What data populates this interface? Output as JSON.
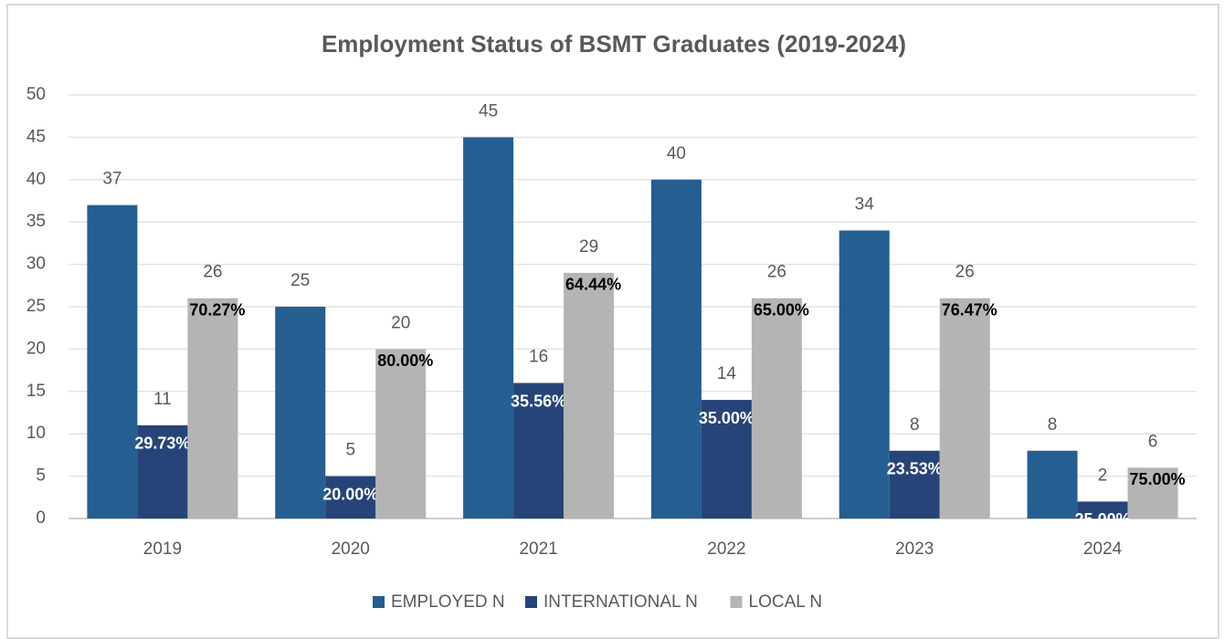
{
  "chart_data": {
    "type": "bar",
    "title": "Employment Status of BSMT Graduates (2019-2024)",
    "categories": [
      "2019",
      "2020",
      "2021",
      "2022",
      "2023",
      "2024"
    ],
    "series": [
      {
        "name": "EMPLOYED N",
        "color": "#255e91",
        "values": [
          37,
          25,
          45,
          40,
          34,
          8
        ]
      },
      {
        "name": "INTERNATIONAL N",
        "color": "#264478",
        "values": [
          11,
          5,
          16,
          14,
          8,
          2
        ],
        "percent_labels": [
          "29.73%",
          "20.00%",
          "35.56%",
          "35.00%",
          "23.53%",
          "25.00%"
        ]
      },
      {
        "name": "LOCAL N",
        "color": "#b4b4b4",
        "values": [
          26,
          20,
          29,
          26,
          26,
          6
        ],
        "percent_labels": [
          "70.27%",
          "80.00%",
          "64.44%",
          "65.00%",
          "76.47%",
          "75.00%"
        ]
      }
    ],
    "ylim": [
      0,
      50
    ],
    "yticks": [
      0,
      5,
      10,
      15,
      20,
      25,
      30,
      35,
      40,
      45,
      50
    ],
    "grid": true,
    "legend": "bottom"
  }
}
